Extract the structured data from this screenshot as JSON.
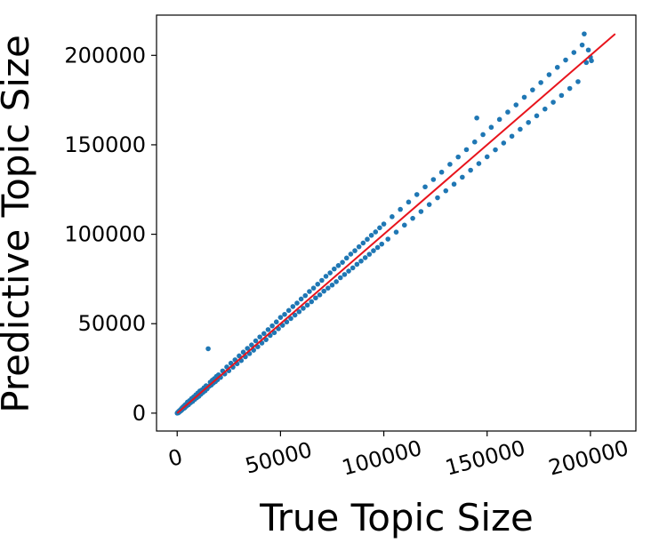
{
  "chart_data": {
    "type": "scatter",
    "title": "",
    "xlabel": "True Topic Size",
    "ylabel": "Predictive Topic Size",
    "xlim": [
      -10000,
      222000
    ],
    "ylim": [
      -10000,
      222500
    ],
    "grid": false,
    "legend": "none",
    "x_ticks": [
      0,
      50000,
      100000,
      150000,
      200000
    ],
    "x_tick_labels": [
      "0",
      "50000",
      "100000",
      "150000",
      "200000"
    ],
    "y_ticks": [
      0,
      50000,
      100000,
      150000,
      200000
    ],
    "y_tick_labels": [
      "0",
      "50000",
      "100000",
      "150000",
      "200000"
    ],
    "series": [
      {
        "kind": "points",
        "color": "#1f77b4",
        "points": [
          [
            0,
            0
          ],
          [
            300,
            500
          ],
          [
            600,
            200
          ],
          [
            900,
            1200
          ],
          [
            1200,
            800
          ],
          [
            1500,
            1800
          ],
          [
            1800,
            1300
          ],
          [
            2100,
            2600
          ],
          [
            2400,
            1900
          ],
          [
            2700,
            3300
          ],
          [
            3000,
            2600
          ],
          [
            3300,
            4000
          ],
          [
            3600,
            2900
          ],
          [
            4000,
            4800
          ],
          [
            4500,
            3900
          ],
          [
            5000,
            6200
          ],
          [
            5500,
            4700
          ],
          [
            6000,
            7000
          ],
          [
            6500,
            5800
          ],
          [
            7000,
            8200
          ],
          [
            7500,
            6600
          ],
          [
            8000,
            9100
          ],
          [
            8500,
            7700
          ],
          [
            9000,
            10200
          ],
          [
            9500,
            8600
          ],
          [
            10000,
            11300
          ],
          [
            10500,
            9400
          ],
          [
            11000,
            12400
          ],
          [
            11500,
            10600
          ],
          [
            12000,
            13000
          ],
          [
            12500,
            11600
          ],
          [
            13000,
            14200
          ],
          [
            13500,
            12500
          ],
          [
            14000,
            15300
          ],
          [
            14500,
            13600
          ],
          [
            15000,
            36000
          ],
          [
            15500,
            15000
          ],
          [
            16000,
            17300
          ],
          [
            16500,
            15700
          ],
          [
            17000,
            18400
          ],
          [
            17500,
            16800
          ],
          [
            18000,
            19300
          ],
          [
            18500,
            17600
          ],
          [
            19000,
            20500
          ],
          [
            19500,
            18700
          ],
          [
            20000,
            21400
          ],
          [
            21000,
            20000
          ],
          [
            22000,
            23600
          ],
          [
            23000,
            21900
          ],
          [
            24000,
            25800
          ],
          [
            25000,
            23700
          ],
          [
            26000,
            27900
          ],
          [
            27000,
            25700
          ],
          [
            28000,
            29800
          ],
          [
            29000,
            27600
          ],
          [
            30000,
            32000
          ],
          [
            31000,
            29400
          ],
          [
            32000,
            34100
          ],
          [
            33000,
            31500
          ],
          [
            34000,
            36200
          ],
          [
            35000,
            33300
          ],
          [
            36000,
            38100
          ],
          [
            37000,
            35200
          ],
          [
            38000,
            40400
          ],
          [
            39000,
            37100
          ],
          [
            40000,
            42600
          ],
          [
            41000,
            39200
          ],
          [
            42000,
            44500
          ],
          [
            43000,
            41100
          ],
          [
            44000,
            46700
          ],
          [
            45000,
            43400
          ],
          [
            46000,
            48800
          ],
          [
            47000,
            45000
          ],
          [
            48000,
            51000
          ],
          [
            49000,
            47200
          ],
          [
            50000,
            53500
          ],
          [
            51000,
            49100
          ],
          [
            52000,
            55200
          ],
          [
            53000,
            51000
          ],
          [
            54000,
            57400
          ],
          [
            55000,
            52900
          ],
          [
            56000,
            59600
          ],
          [
            57000,
            54800
          ],
          [
            58000,
            61500
          ],
          [
            59000,
            56700
          ],
          [
            60000,
            63800
          ],
          [
            61000,
            58600
          ],
          [
            62000,
            65700
          ],
          [
            63000,
            60400
          ],
          [
            64000,
            68000
          ],
          [
            65000,
            62300
          ],
          [
            66000,
            69900
          ],
          [
            67000,
            64400
          ],
          [
            68000,
            72100
          ],
          [
            69000,
            66100
          ],
          [
            70000,
            74200
          ],
          [
            71000,
            68200
          ],
          [
            72000,
            76500
          ],
          [
            73000,
            69900
          ],
          [
            74000,
            78400
          ],
          [
            75000,
            71600
          ],
          [
            76000,
            80600
          ],
          [
            77000,
            73500
          ],
          [
            78000,
            82500
          ],
          [
            79000,
            75700
          ],
          [
            80000,
            84300
          ],
          [
            81000,
            77500
          ],
          [
            82000,
            86700
          ],
          [
            83000,
            79400
          ],
          [
            84000,
            88900
          ],
          [
            85000,
            81200
          ],
          [
            86000,
            90800
          ],
          [
            87000,
            83200
          ],
          [
            88000,
            93000
          ],
          [
            89000,
            85000
          ],
          [
            90000,
            95100
          ],
          [
            91000,
            86900
          ],
          [
            92000,
            97200
          ],
          [
            93000,
            88800
          ],
          [
            94000,
            99400
          ],
          [
            95000,
            90800
          ],
          [
            96000,
            101300
          ],
          [
            97000,
            92600
          ],
          [
            98000,
            103600
          ],
          [
            99000,
            94500
          ],
          [
            100000,
            105700
          ],
          [
            102000,
            97300
          ],
          [
            104000,
            109800
          ],
          [
            106000,
            101200
          ],
          [
            108000,
            113900
          ],
          [
            110000,
            105100
          ],
          [
            112000,
            118000
          ],
          [
            114000,
            108900
          ],
          [
            116000,
            122200
          ],
          [
            118000,
            112700
          ],
          [
            120000,
            126500
          ],
          [
            122000,
            116600
          ],
          [
            124000,
            130600
          ],
          [
            126000,
            120400
          ],
          [
            128000,
            134700
          ],
          [
            130000,
            124300
          ],
          [
            132000,
            139100
          ],
          [
            134000,
            128000
          ],
          [
            136000,
            143200
          ],
          [
            138000,
            131900
          ],
          [
            140000,
            147300
          ],
          [
            142000,
            135800
          ],
          [
            144000,
            151600
          ],
          [
            145000,
            165000
          ],
          [
            146000,
            139500
          ],
          [
            148000,
            155700
          ],
          [
            150000,
            143300
          ],
          [
            152000,
            159800
          ],
          [
            154000,
            147200
          ],
          [
            156000,
            164200
          ],
          [
            158000,
            151000
          ],
          [
            160000,
            168300
          ],
          [
            162000,
            154800
          ],
          [
            164000,
            172300
          ],
          [
            166000,
            158700
          ],
          [
            168000,
            176600
          ],
          [
            170000,
            162500
          ],
          [
            172000,
            180700
          ],
          [
            174000,
            166200
          ],
          [
            176000,
            184800
          ],
          [
            178000,
            170000
          ],
          [
            180000,
            189200
          ],
          [
            182000,
            173800
          ],
          [
            184000,
            193300
          ],
          [
            186000,
            177600
          ],
          [
            188000,
            197400
          ],
          [
            190000,
            181500
          ],
          [
            192000,
            201600
          ],
          [
            194000,
            185300
          ],
          [
            196000,
            205800
          ],
          [
            197000,
            212000
          ],
          [
            198000,
            196000
          ],
          [
            199000,
            203000
          ],
          [
            200000,
            199000
          ],
          [
            200500,
            197000
          ]
        ]
      },
      {
        "kind": "line",
        "color": "#e8141c",
        "points": [
          [
            0,
            0
          ],
          [
            212000,
            212000
          ]
        ]
      }
    ]
  }
}
